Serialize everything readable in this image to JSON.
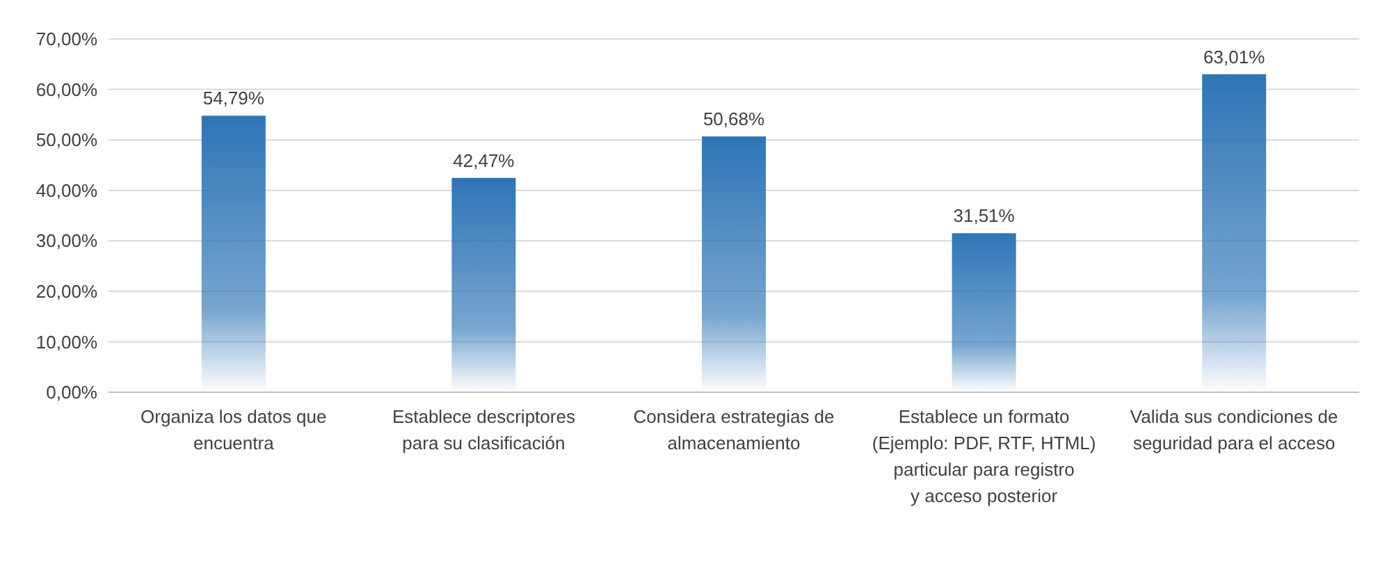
{
  "chart_data": {
    "type": "bar",
    "categories": [
      "Organiza los datos que encuentra",
      "Establece descriptores para su clasificación",
      "Considera estrategias de almacenamiento",
      "Establece un formato (Ejemplo: PDF, RTF, HTML) particular para registro y acceso posterior",
      "Valida sus condiciones de seguridad para el acceso"
    ],
    "values": [
      54.79,
      42.47,
      50.68,
      31.51,
      63.01
    ],
    "value_labels": [
      "54,79%",
      "42,47%",
      "50,68%",
      "31,51%",
      "63,01%"
    ],
    "color": "#2e75b6",
    "ylim": [
      0,
      70
    ],
    "yticks": [
      {
        "value": 0,
        "label": "0,00%"
      },
      {
        "value": 10,
        "label": "10,00%"
      },
      {
        "value": 20,
        "label": "20,00%"
      },
      {
        "value": 30,
        "label": "30,00%"
      },
      {
        "value": 40,
        "label": "40,00%"
      },
      {
        "value": 50,
        "label": "50,00%"
      },
      {
        "value": 60,
        "label": "60,00%"
      },
      {
        "value": 70,
        "label": "70,00%"
      }
    ],
    "grid": "y"
  }
}
